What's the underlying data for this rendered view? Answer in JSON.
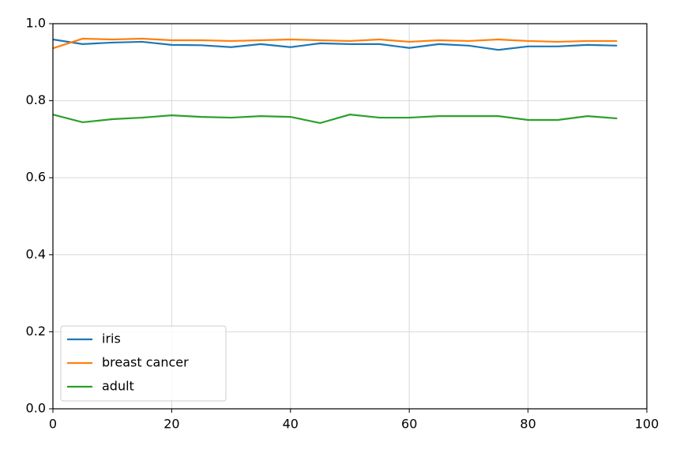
{
  "chart_data": {
    "type": "line",
    "x": [
      0,
      5,
      10,
      15,
      20,
      25,
      30,
      35,
      40,
      45,
      50,
      55,
      60,
      65,
      70,
      75,
      80,
      85,
      90,
      95
    ],
    "series": [
      {
        "name": "iris",
        "color": "#1f77b4",
        "values": [
          0.959,
          0.947,
          0.951,
          0.953,
          0.945,
          0.944,
          0.939,
          0.947,
          0.939,
          0.949,
          0.947,
          0.947,
          0.937,
          0.947,
          0.943,
          0.932,
          0.941,
          0.941,
          0.945,
          0.943
        ]
      },
      {
        "name": "breast cancer",
        "color": "#ff7f0e",
        "values": [
          0.936,
          0.961,
          0.959,
          0.961,
          0.957,
          0.957,
          0.955,
          0.957,
          0.959,
          0.957,
          0.955,
          0.959,
          0.953,
          0.957,
          0.955,
          0.959,
          0.955,
          0.953,
          0.955,
          0.955
        ]
      },
      {
        "name": "adult",
        "color": "#2ca02c",
        "values": [
          0.764,
          0.744,
          0.752,
          0.756,
          0.762,
          0.758,
          0.756,
          0.76,
          0.758,
          0.742,
          0.764,
          0.756,
          0.756,
          0.76,
          0.76,
          0.76,
          0.75,
          0.75,
          0.76,
          0.754
        ]
      }
    ],
    "xlim": [
      0,
      100
    ],
    "xticks": [
      0,
      20,
      40,
      60,
      80,
      100
    ],
    "ylim": [
      0,
      1
    ],
    "yticks": [
      {
        "value": 0,
        "label": "0.0"
      },
      0.2,
      0.4,
      0.6,
      0.8,
      {
        "value": 1,
        "label": "1.0"
      }
    ],
    "grid": true,
    "legend": "lower left"
  }
}
